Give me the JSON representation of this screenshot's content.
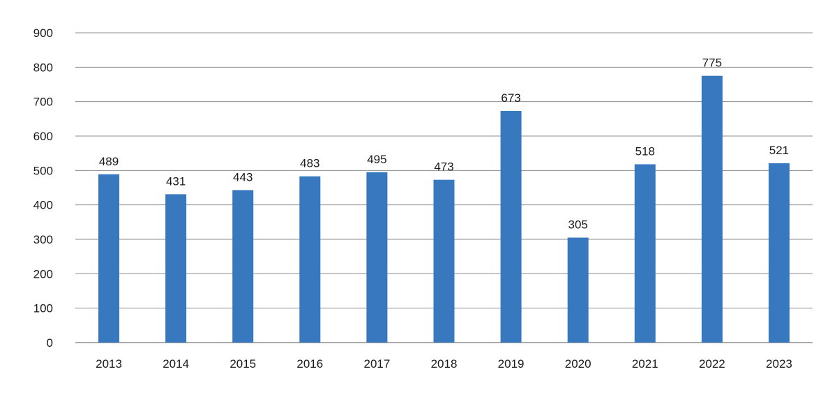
{
  "chart_data": {
    "type": "bar",
    "title": "",
    "xlabel": "",
    "ylabel": "",
    "categories": [
      "2013",
      "2014",
      "2015",
      "2016",
      "2017",
      "2018",
      "2019",
      "2020",
      "2021",
      "2022",
      "2023"
    ],
    "values": [
      489,
      431,
      443,
      483,
      495,
      473,
      673,
      305,
      518,
      775,
      521
    ],
    "data_labels": [
      "489",
      "431",
      "443",
      "483",
      "495",
      "473",
      "673",
      "305",
      "518",
      "775",
      "521"
    ],
    "ylim": [
      0,
      900
    ],
    "yticks": [
      0,
      100,
      200,
      300,
      400,
      500,
      600,
      700,
      800,
      900
    ],
    "ytick_labels": [
      "0",
      "100",
      "200",
      "300",
      "400",
      "500",
      "600",
      "700",
      "800",
      "900"
    ],
    "grid": true,
    "legend": "none",
    "bar_color": "#3878be"
  }
}
